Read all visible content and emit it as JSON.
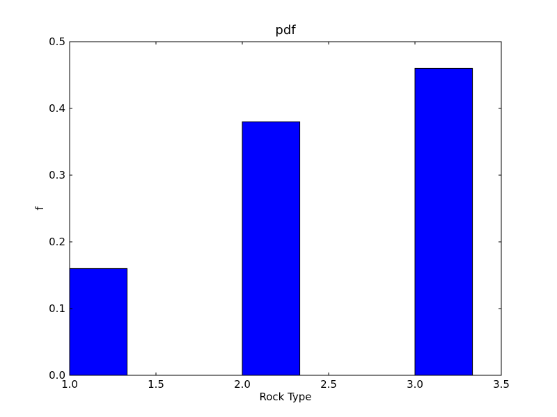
{
  "chart_data": {
    "type": "bar",
    "title": "pdf",
    "xlabel": "Rock Type",
    "ylabel": "f",
    "xlim": [
      1.0,
      3.5
    ],
    "ylim": [
      0.0,
      0.5
    ],
    "xticks": [
      "1.0",
      "1.5",
      "2.0",
      "2.5",
      "3.0",
      "3.5"
    ],
    "yticks": [
      "0.0",
      "0.1",
      "0.2",
      "0.3",
      "0.4",
      "0.5"
    ],
    "bars": [
      {
        "x_start": 1.0,
        "x_end": 1.333,
        "value": 0.16
      },
      {
        "x_start": 2.0,
        "x_end": 2.333,
        "value": 0.38
      },
      {
        "x_start": 3.0,
        "x_end": 3.333,
        "value": 0.46
      }
    ],
    "bar_color": "#0000ff",
    "grid": false,
    "legend": false
  }
}
